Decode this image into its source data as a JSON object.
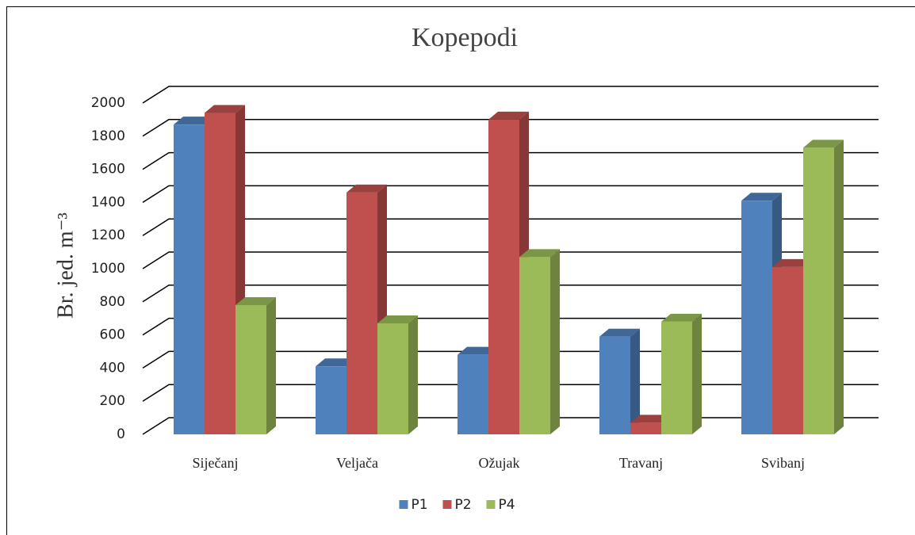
{
  "chart_data": {
    "type": "bar3d",
    "title": "Kopepodi",
    "ylabel": "Br. jed. m⁻³",
    "categories": [
      "Siječanj",
      "Veljača",
      "Ožujak",
      "Travanj",
      "Svibanj"
    ],
    "series": [
      {
        "name": "P1",
        "color": "#4f81bd",
        "values": [
          1870,
          410,
          480,
          590,
          1410
        ]
      },
      {
        "name": "P2",
        "color": "#c0504d",
        "values": [
          1940,
          1460,
          1900,
          70,
          1010
        ]
      },
      {
        "name": "P4",
        "color": "#9bbb59",
        "values": [
          780,
          670,
          1070,
          680,
          1730
        ]
      }
    ],
    "ylim": [
      0,
      2000
    ],
    "yticks": [
      0,
      200,
      400,
      600,
      800,
      1000,
      1200,
      1400,
      1600,
      1800,
      2000
    ],
    "grid": true,
    "legend": "bottom"
  }
}
